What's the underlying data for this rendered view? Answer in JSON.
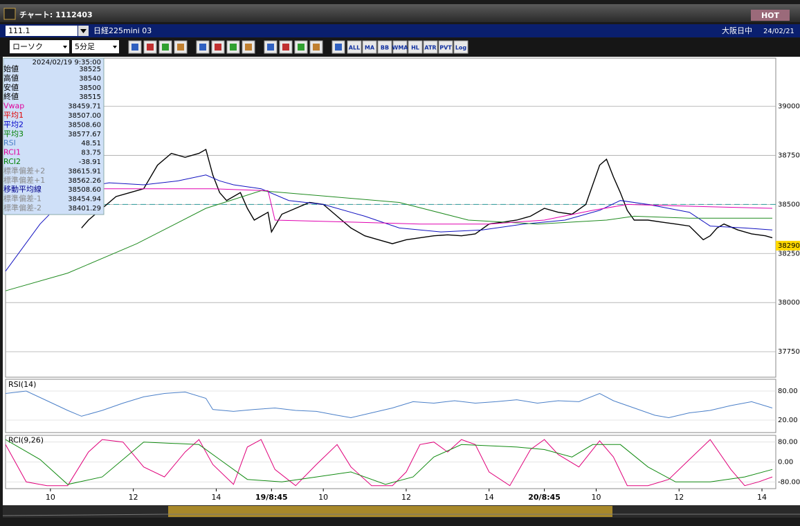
{
  "window": {
    "title": "チャート: 1112403",
    "hot": "HOT"
  },
  "symbol_bar": {
    "code": "111.1",
    "name": "日経225mini 03",
    "market": "大阪日中",
    "date": "24/02/21"
  },
  "toolbar": {
    "chart_type": "ローソク",
    "interval": "5分足",
    "buttons": [
      "ALL",
      "MA",
      "BB",
      "WMA",
      "HL",
      "ATR",
      "PVT",
      "Log"
    ]
  },
  "info_panel": {
    "datetime": "2024/02/19 9:35:00",
    "rows": [
      {
        "label": "始値",
        "value": "38525",
        "color": "#000000"
      },
      {
        "label": "高値",
        "value": "38540",
        "color": "#000000"
      },
      {
        "label": "安値",
        "value": "38500",
        "color": "#000000"
      },
      {
        "label": "終値",
        "value": "38515",
        "color": "#000000"
      },
      {
        "label": "Vwap",
        "value": "38459.71",
        "color": "#e0009a"
      },
      {
        "label": "平均1",
        "value": "38507.00",
        "color": "#e00000"
      },
      {
        "label": "平均2",
        "value": "38508.60",
        "color": "#0000c8"
      },
      {
        "label": "平均3",
        "value": "38577.67",
        "color": "#008000"
      },
      {
        "label": "RSI",
        "value": "48.51",
        "color": "#4a7fc8"
      },
      {
        "label": "RCI1",
        "value": "83.75",
        "color": "#e0009a"
      },
      {
        "label": "RCI2",
        "value": "-38.91",
        "color": "#008000"
      },
      {
        "label": "標準偏差+2",
        "value": "38615.91",
        "color": "#8a8a8a"
      },
      {
        "label": "標準偏差+1",
        "value": "38562.26",
        "color": "#8a8a8a"
      },
      {
        "label": "移動平均線",
        "value": "38508.60",
        "color": "#00008b"
      },
      {
        "label": "標準偏差-1",
        "value": "38454.94",
        "color": "#8a8a8a"
      },
      {
        "label": "標準偏差-2",
        "value": "38401.29",
        "color": "#8a8a8a"
      }
    ]
  },
  "chart_data": [
    {
      "type": "line",
      "xlim": [
        0,
        223
      ],
      "xticks": [
        {
          "value": 13,
          "label": "10"
        },
        {
          "value": 37,
          "label": "12"
        },
        {
          "value": 61,
          "label": "14"
        },
        {
          "value": 77,
          "label": "19/8:45"
        },
        {
          "value": 92,
          "label": "10"
        },
        {
          "value": 116,
          "label": "12"
        },
        {
          "value": 140,
          "label": "14"
        },
        {
          "value": 156,
          "label": "20/8:45"
        },
        {
          "value": 171,
          "label": "10"
        },
        {
          "value": 195,
          "label": "12"
        },
        {
          "value": 219,
          "label": "14"
        }
      ],
      "ylim": [
        37620,
        39245
      ],
      "yticks": [
        37750,
        38000,
        38250,
        38500,
        38750,
        39000
      ],
      "hline": 38500,
      "last_value": 38290,
      "series": [
        {
          "color": "#000000",
          "x": [
            22,
            24,
            28,
            32,
            36,
            40,
            44,
            48,
            52,
            56,
            58,
            60,
            62,
            64,
            68,
            70,
            72,
            76,
            77,
            80,
            84,
            88,
            92,
            96,
            100,
            104,
            108,
            112,
            116,
            120,
            124,
            128,
            132,
            136,
            140,
            144,
            148,
            152,
            156,
            160,
            164,
            168,
            170,
            172,
            174,
            176,
            178,
            180,
            182,
            186,
            190,
            194,
            198,
            202,
            204,
            206,
            208,
            212,
            216,
            220,
            222
          ],
          "values": [
            38380,
            38420,
            38480,
            38540,
            38560,
            38580,
            38700,
            38760,
            38740,
            38760,
            38780,
            38650,
            38560,
            38520,
            38560,
            38480,
            38420,
            38460,
            38360,
            38450,
            38480,
            38510,
            38500,
            38440,
            38380,
            38340,
            38320,
            38300,
            38320,
            38330,
            38340,
            38345,
            38340,
            38350,
            38400,
            38410,
            38420,
            38440,
            38480,
            38460,
            38450,
            38500,
            38600,
            38700,
            38730,
            38640,
            38560,
            38470,
            38420,
            38420,
            38410,
            38400,
            38390,
            38320,
            38340,
            38380,
            38400,
            38370,
            38350,
            38340,
            38330
          ]
        },
        {
          "color": "#1010c0",
          "x": [
            0,
            10,
            20,
            30,
            40,
            50,
            58,
            62,
            66,
            74,
            82,
            92,
            104,
            114,
            126,
            138,
            150,
            162,
            172,
            178,
            186,
            198,
            204,
            214,
            222
          ],
          "values": [
            38160,
            38400,
            38580,
            38610,
            38600,
            38620,
            38650,
            38620,
            38600,
            38580,
            38520,
            38500,
            38440,
            38380,
            38360,
            38370,
            38400,
            38420,
            38470,
            38520,
            38500,
            38460,
            38390,
            38380,
            38370
          ]
        },
        {
          "color": "#1e8a1e",
          "x": [
            0,
            18,
            38,
            58,
            74,
            94,
            114,
            134,
            154,
            174,
            182,
            198,
            222
          ],
          "values": [
            38060,
            38150,
            38300,
            38480,
            38570,
            38540,
            38510,
            38420,
            38400,
            38420,
            38440,
            38430,
            38430
          ]
        },
        {
          "color": "#e000b0",
          "x": [
            0,
            30,
            60,
            76,
            78,
            100,
            120,
            140,
            156,
            170,
            180,
            200,
            222
          ],
          "values": [
            38580,
            38580,
            38580,
            38570,
            38420,
            38410,
            38400,
            38400,
            38420,
            38470,
            38500,
            38490,
            38480
          ]
        }
      ]
    },
    {
      "type": "line",
      "title": "RSI(14)",
      "ylim": [
        0,
        100
      ],
      "yticks": [
        {
          "value": 80,
          "label": "80.00"
        },
        {
          "value": 20,
          "label": "20.00"
        }
      ],
      "series": [
        {
          "color": "#4a7fc8",
          "x": [
            0,
            6,
            12,
            18,
            22,
            28,
            34,
            40,
            46,
            52,
            58,
            60,
            66,
            72,
            78,
            84,
            90,
            96,
            100,
            106,
            112,
            118,
            124,
            130,
            136,
            142,
            148,
            154,
            160,
            166,
            172,
            176,
            182,
            188,
            192,
            198,
            204,
            210,
            216,
            222
          ],
          "values": [
            75,
            80,
            60,
            40,
            28,
            40,
            55,
            68,
            75,
            78,
            65,
            42,
            38,
            42,
            45,
            40,
            38,
            30,
            25,
            35,
            45,
            58,
            55,
            60,
            55,
            58,
            62,
            55,
            60,
            58,
            75,
            60,
            45,
            30,
            25,
            35,
            40,
            50,
            58,
            45
          ]
        }
      ]
    },
    {
      "type": "line",
      "title": "RCI(9,26)",
      "ylim": [
        -100,
        100
      ],
      "yticks": [
        {
          "value": 80,
          "label": "80.00"
        },
        {
          "value": 0,
          "label": "0.00"
        },
        {
          "value": -80,
          "label": "-80.00"
        }
      ],
      "series": [
        {
          "color": "#e0007a",
          "x": [
            0,
            6,
            12,
            18,
            24,
            28,
            34,
            40,
            46,
            52,
            56,
            60,
            66,
            70,
            74,
            78,
            84,
            90,
            96,
            100,
            106,
            112,
            116,
            120,
            124,
            128,
            132,
            136,
            140,
            146,
            152,
            156,
            160,
            166,
            172,
            176,
            180,
            186,
            192,
            198,
            204,
            210,
            214,
            218,
            222
          ],
          "values": [
            70,
            -80,
            -95,
            -95,
            40,
            90,
            80,
            -20,
            -60,
            40,
            90,
            -10,
            -90,
            60,
            90,
            -30,
            -95,
            -10,
            70,
            -20,
            -95,
            -95,
            -40,
            70,
            80,
            40,
            90,
            70,
            -40,
            -95,
            50,
            90,
            30,
            -20,
            85,
            20,
            -95,
            -95,
            -70,
            10,
            90,
            -30,
            -95,
            -80,
            -60
          ]
        },
        {
          "color": "#108a10",
          "x": [
            0,
            10,
            18,
            28,
            40,
            56,
            62,
            70,
            80,
            90,
            100,
            110,
            118,
            124,
            132,
            148,
            156,
            164,
            170,
            178,
            186,
            194,
            204,
            214,
            222
          ],
          "values": [
            90,
            10,
            -90,
            -60,
            80,
            70,
            10,
            -70,
            -80,
            -60,
            -40,
            -90,
            -60,
            20,
            70,
            60,
            50,
            20,
            70,
            70,
            -20,
            -80,
            -80,
            -60,
            -30
          ]
        }
      ]
    }
  ]
}
